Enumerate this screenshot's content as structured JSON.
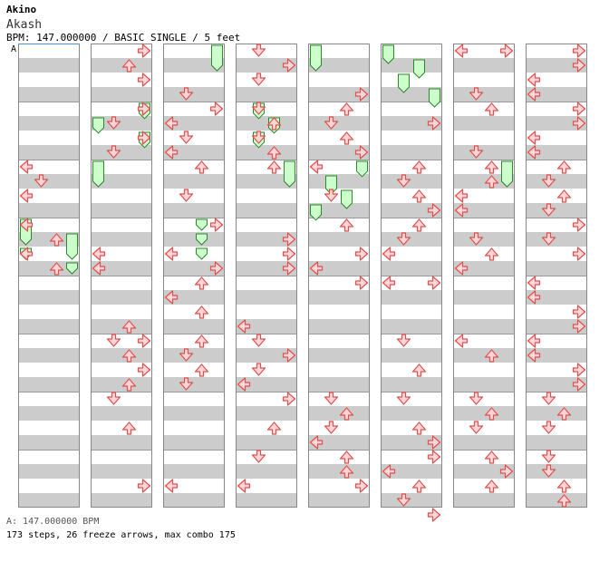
{
  "header": {
    "artist": "Akino",
    "title": "Akash",
    "meta": "BPM: 147.000000 / BASIC SINGLE / 5 feet"
  },
  "bpm_marker": "A",
  "footer": {
    "bpm_line": "A: 147.000000 BPM",
    "stats": "173 steps, 26 freeze arrows, max combo 175"
  },
  "colors": {
    "arrow_fill": "#ffd6d6",
    "arrow_stroke": "#e05050",
    "freeze_fill": "#ccffcc",
    "freeze_stroke": "#2a8a2a",
    "stripe": "#cccccc",
    "marker_line": "#4a90e2"
  },
  "chart_data": {
    "type": "step-chart",
    "lanes": [
      "left",
      "down",
      "up",
      "right"
    ],
    "columns": 8,
    "measures_per_column": 4,
    "rows_per_measure": 4,
    "freeze_arrows": [
      {
        "col": 0,
        "lane": 0,
        "start": 12,
        "end": 14
      },
      {
        "col": 0,
        "lane": 3,
        "start": 13,
        "end": 15
      },
      {
        "col": 0,
        "lane": 0,
        "start": 14,
        "end": 15
      },
      {
        "col": 0,
        "lane": 3,
        "start": 15,
        "end": 16
      },
      {
        "col": 1,
        "lane": 3,
        "start": 4,
        "end": 5.3
      },
      {
        "col": 1,
        "lane": 0,
        "start": 5,
        "end": 6.3
      },
      {
        "col": 1,
        "lane": 3,
        "start": 6,
        "end": 7.3
      },
      {
        "col": 1,
        "lane": 0,
        "start": 8,
        "end": 10
      },
      {
        "col": 2,
        "lane": 3,
        "start": 0,
        "end": 2
      },
      {
        "col": 2,
        "lane": 2,
        "start": 12,
        "end": 13
      },
      {
        "col": 2,
        "lane": 2,
        "start": 13,
        "end": 14
      },
      {
        "col": 2,
        "lane": 2,
        "start": 14,
        "end": 15
      },
      {
        "col": 3,
        "lane": 1,
        "start": 4,
        "end": 5.3
      },
      {
        "col": 3,
        "lane": 2,
        "start": 5,
        "end": 6.3
      },
      {
        "col": 3,
        "lane": 1,
        "start": 6,
        "end": 7.3
      },
      {
        "col": 3,
        "lane": 3,
        "start": 8,
        "end": 10
      },
      {
        "col": 4,
        "lane": 0,
        "start": 0,
        "end": 2
      },
      {
        "col": 4,
        "lane": 3,
        "start": 8,
        "end": 9.3
      },
      {
        "col": 4,
        "lane": 1,
        "start": 9,
        "end": 10.5
      },
      {
        "col": 4,
        "lane": 2,
        "start": 10,
        "end": 11.5
      },
      {
        "col": 4,
        "lane": 0,
        "start": 11,
        "end": 12.3
      },
      {
        "col": 5,
        "lane": 0,
        "start": 0,
        "end": 1.5
      },
      {
        "col": 5,
        "lane": 2,
        "start": 1,
        "end": 2.5
      },
      {
        "col": 5,
        "lane": 1,
        "start": 2,
        "end": 3.5
      },
      {
        "col": 5,
        "lane": 3,
        "start": 3,
        "end": 4.5
      },
      {
        "col": 6,
        "lane": 3,
        "start": 8,
        "end": 10
      }
    ],
    "arrows": [
      {
        "col": 0,
        "lane": 0,
        "row": 8
      },
      {
        "col": 0,
        "lane": 1,
        "row": 9
      },
      {
        "col": 0,
        "lane": 0,
        "row": 10
      },
      {
        "col": 0,
        "lane": 0,
        "row": 12
      },
      {
        "col": 0,
        "lane": 2,
        "row": 13
      },
      {
        "col": 0,
        "lane": 0,
        "row": 14
      },
      {
        "col": 0,
        "lane": 2,
        "row": 15
      },
      {
        "col": 1,
        "lane": 3,
        "row": 0
      },
      {
        "col": 1,
        "lane": 2,
        "row": 1
      },
      {
        "col": 1,
        "lane": 3,
        "row": 2
      },
      {
        "col": 1,
        "lane": 3,
        "row": 4
      },
      {
        "col": 1,
        "lane": 1,
        "row": 5
      },
      {
        "col": 1,
        "lane": 3,
        "row": 6
      },
      {
        "col": 1,
        "lane": 1,
        "row": 7
      },
      {
        "col": 1,
        "lane": 0,
        "row": 14
      },
      {
        "col": 1,
        "lane": 0,
        "row": 15
      },
      {
        "col": 1,
        "lane": 2,
        "row": 19
      },
      {
        "col": 1,
        "lane": 1,
        "row": 20
      },
      {
        "col": 1,
        "lane": 3,
        "row": 20
      },
      {
        "col": 1,
        "lane": 3,
        "row": 22
      },
      {
        "col": 1,
        "lane": 2,
        "row": 21
      },
      {
        "col": 1,
        "lane": 2,
        "row": 23
      },
      {
        "col": 1,
        "lane": 1,
        "row": 24
      },
      {
        "col": 1,
        "lane": 2,
        "row": 26
      },
      {
        "col": 1,
        "lane": 3,
        "row": 30
      },
      {
        "col": 2,
        "lane": 1,
        "row": 3
      },
      {
        "col": 2,
        "lane": 3,
        "row": 4
      },
      {
        "col": 2,
        "lane": 0,
        "row": 5
      },
      {
        "col": 2,
        "lane": 1,
        "row": 6
      },
      {
        "col": 2,
        "lane": 0,
        "row": 7
      },
      {
        "col": 2,
        "lane": 2,
        "row": 8
      },
      {
        "col": 2,
        "lane": 1,
        "row": 10
      },
      {
        "col": 2,
        "lane": 3,
        "row": 12
      },
      {
        "col": 2,
        "lane": 0,
        "row": 14
      },
      {
        "col": 2,
        "lane": 3,
        "row": 15
      },
      {
        "col": 2,
        "lane": 2,
        "row": 16
      },
      {
        "col": 2,
        "lane": 0,
        "row": 17
      },
      {
        "col": 2,
        "lane": 2,
        "row": 18
      },
      {
        "col": 2,
        "lane": 2,
        "row": 20
      },
      {
        "col": 2,
        "lane": 1,
        "row": 21
      },
      {
        "col": 2,
        "lane": 2,
        "row": 22
      },
      {
        "col": 2,
        "lane": 1,
        "row": 23
      },
      {
        "col": 2,
        "lane": 0,
        "row": 30
      },
      {
        "col": 3,
        "lane": 1,
        "row": 0
      },
      {
        "col": 3,
        "lane": 3,
        "row": 1
      },
      {
        "col": 3,
        "lane": 1,
        "row": 2
      },
      {
        "col": 3,
        "lane": 1,
        "row": 4
      },
      {
        "col": 3,
        "lane": 2,
        "row": 5
      },
      {
        "col": 3,
        "lane": 1,
        "row": 6
      },
      {
        "col": 3,
        "lane": 2,
        "row": 7
      },
      {
        "col": 3,
        "lane": 2,
        "row": 8
      },
      {
        "col": 3,
        "lane": 3,
        "row": 13
      },
      {
        "col": 3,
        "lane": 3,
        "row": 14
      },
      {
        "col": 3,
        "lane": 3,
        "row": 15
      },
      {
        "col": 3,
        "lane": 0,
        "row": 19
      },
      {
        "col": 3,
        "lane": 1,
        "row": 20
      },
      {
        "col": 3,
        "lane": 3,
        "row": 21
      },
      {
        "col": 3,
        "lane": 1,
        "row": 22
      },
      {
        "col": 3,
        "lane": 0,
        "row": 23
      },
      {
        "col": 3,
        "lane": 3,
        "row": 24
      },
      {
        "col": 3,
        "lane": 2,
        "row": 26
      },
      {
        "col": 3,
        "lane": 1,
        "row": 28
      },
      {
        "col": 3,
        "lane": 0,
        "row": 30
      },
      {
        "col": 4,
        "lane": 3,
        "row": 3
      },
      {
        "col": 4,
        "lane": 2,
        "row": 4
      },
      {
        "col": 4,
        "lane": 1,
        "row": 5
      },
      {
        "col": 4,
        "lane": 2,
        "row": 6
      },
      {
        "col": 4,
        "lane": 3,
        "row": 7
      },
      {
        "col": 4,
        "lane": 0,
        "row": 8
      },
      {
        "col": 4,
        "lane": 1,
        "row": 10
      },
      {
        "col": 4,
        "lane": 2,
        "row": 12
      },
      {
        "col": 4,
        "lane": 3,
        "row": 14
      },
      {
        "col": 4,
        "lane": 0,
        "row": 15
      },
      {
        "col": 4,
        "lane": 3,
        "row": 16
      },
      {
        "col": 4,
        "lane": 1,
        "row": 24
      },
      {
        "col": 4,
        "lane": 2,
        "row": 25
      },
      {
        "col": 4,
        "lane": 1,
        "row": 26
      },
      {
        "col": 4,
        "lane": 0,
        "row": 27
      },
      {
        "col": 4,
        "lane": 2,
        "row": 28
      },
      {
        "col": 4,
        "lane": 2,
        "row": 29
      },
      {
        "col": 4,
        "lane": 3,
        "row": 30
      },
      {
        "col": 5,
        "lane": 3,
        "row": 5
      },
      {
        "col": 5,
        "lane": 2,
        "row": 8
      },
      {
        "col": 5,
        "lane": 1,
        "row": 9
      },
      {
        "col": 5,
        "lane": 2,
        "row": 10
      },
      {
        "col": 5,
        "lane": 3,
        "row": 11
      },
      {
        "col": 5,
        "lane": 2,
        "row": 12
      },
      {
        "col": 5,
        "lane": 1,
        "row": 13
      },
      {
        "col": 5,
        "lane": 0,
        "row": 14
      },
      {
        "col": 5,
        "lane": 0,
        "row": 16
      },
      {
        "col": 5,
        "lane": 3,
        "row": 16
      },
      {
        "col": 5,
        "lane": 1,
        "row": 20
      },
      {
        "col": 5,
        "lane": 2,
        "row": 22
      },
      {
        "col": 5,
        "lane": 1,
        "row": 24
      },
      {
        "col": 5,
        "lane": 2,
        "row": 26
      },
      {
        "col": 5,
        "lane": 3,
        "row": 27
      },
      {
        "col": 5,
        "lane": 3,
        "row": 28
      },
      {
        "col": 5,
        "lane": 0,
        "row": 29
      },
      {
        "col": 5,
        "lane": 2,
        "row": 30
      },
      {
        "col": 5,
        "lane": 1,
        "row": 31
      },
      {
        "col": 5,
        "lane": 3,
        "row": 32
      },
      {
        "col": 6,
        "lane": 0,
        "row": 0
      },
      {
        "col": 6,
        "lane": 3,
        "row": 0
      },
      {
        "col": 6,
        "lane": 1,
        "row": 3
      },
      {
        "col": 6,
        "lane": 2,
        "row": 4
      },
      {
        "col": 6,
        "lane": 1,
        "row": 7
      },
      {
        "col": 6,
        "lane": 2,
        "row": 8
      },
      {
        "col": 6,
        "lane": 2,
        "row": 9
      },
      {
        "col": 6,
        "lane": 0,
        "row": 10
      },
      {
        "col": 6,
        "lane": 0,
        "row": 11
      },
      {
        "col": 6,
        "lane": 1,
        "row": 13
      },
      {
        "col": 6,
        "lane": 2,
        "row": 14
      },
      {
        "col": 6,
        "lane": 0,
        "row": 15
      },
      {
        "col": 6,
        "lane": 0,
        "row": 20
      },
      {
        "col": 6,
        "lane": 2,
        "row": 21
      },
      {
        "col": 6,
        "lane": 1,
        "row": 24
      },
      {
        "col": 6,
        "lane": 2,
        "row": 25
      },
      {
        "col": 6,
        "lane": 1,
        "row": 26
      },
      {
        "col": 6,
        "lane": 2,
        "row": 28
      },
      {
        "col": 6,
        "lane": 3,
        "row": 29
      },
      {
        "col": 6,
        "lane": 2,
        "row": 30
      },
      {
        "col": 7,
        "lane": 3,
        "row": 0
      },
      {
        "col": 7,
        "lane": 3,
        "row": 1
      },
      {
        "col": 7,
        "lane": 0,
        "row": 2
      },
      {
        "col": 7,
        "lane": 0,
        "row": 3
      },
      {
        "col": 7,
        "lane": 3,
        "row": 4
      },
      {
        "col": 7,
        "lane": 3,
        "row": 5
      },
      {
        "col": 7,
        "lane": 0,
        "row": 6
      },
      {
        "col": 7,
        "lane": 0,
        "row": 7
      },
      {
        "col": 7,
        "lane": 2,
        "row": 8
      },
      {
        "col": 7,
        "lane": 1,
        "row": 9
      },
      {
        "col": 7,
        "lane": 2,
        "row": 10
      },
      {
        "col": 7,
        "lane": 1,
        "row": 11
      },
      {
        "col": 7,
        "lane": 3,
        "row": 12
      },
      {
        "col": 7,
        "lane": 1,
        "row": 13
      },
      {
        "col": 7,
        "lane": 3,
        "row": 14
      },
      {
        "col": 7,
        "lane": 0,
        "row": 16
      },
      {
        "col": 7,
        "lane": 0,
        "row": 17
      },
      {
        "col": 7,
        "lane": 3,
        "row": 18
      },
      {
        "col": 7,
        "lane": 3,
        "row": 19
      },
      {
        "col": 7,
        "lane": 0,
        "row": 20
      },
      {
        "col": 7,
        "lane": 0,
        "row": 21
      },
      {
        "col": 7,
        "lane": 3,
        "row": 22
      },
      {
        "col": 7,
        "lane": 3,
        "row": 23
      },
      {
        "col": 7,
        "lane": 1,
        "row": 24
      },
      {
        "col": 7,
        "lane": 2,
        "row": 25
      },
      {
        "col": 7,
        "lane": 1,
        "row": 26
      },
      {
        "col": 7,
        "lane": 1,
        "row": 28
      },
      {
        "col": 7,
        "lane": 1,
        "row": 29
      },
      {
        "col": 7,
        "lane": 2,
        "row": 30
      },
      {
        "col": 7,
        "lane": 2,
        "row": 31
      }
    ]
  }
}
